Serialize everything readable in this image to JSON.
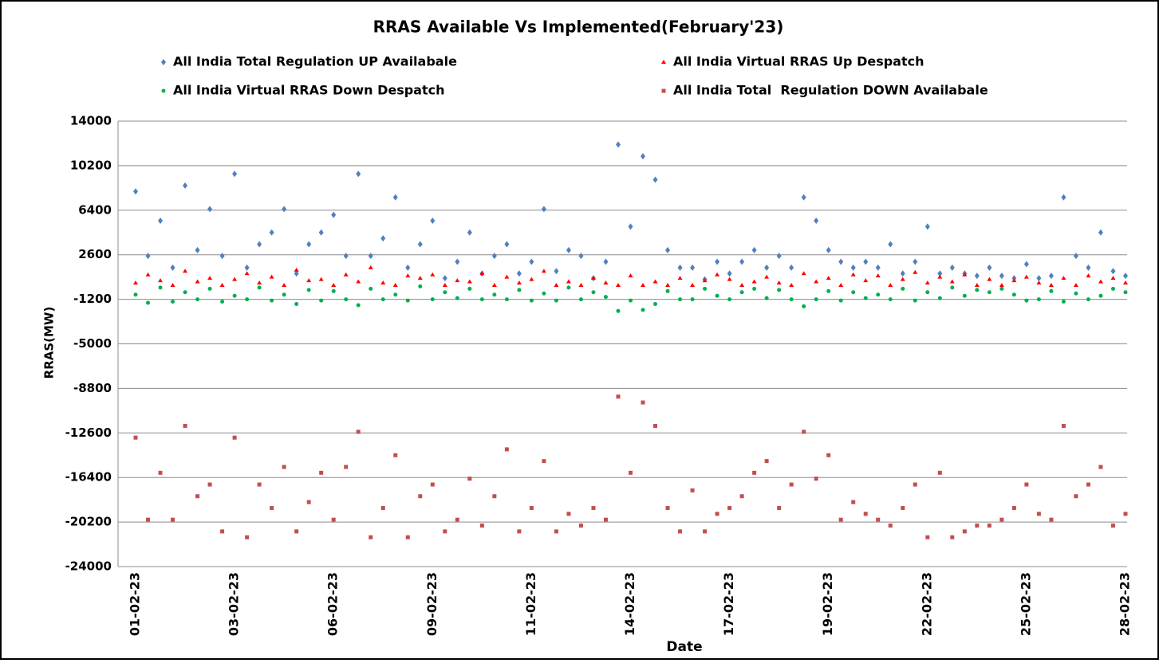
{
  "chart_data": {
    "type": "scatter",
    "title": "RRAS Available Vs Implemented(February'23)",
    "xlabel": "Date",
    "ylabel": "RRAS(MW)",
    "categories": [
      "01-02-23",
      null,
      null,
      null,
      null,
      null,
      null,
      null,
      "03-02-23",
      null,
      null,
      null,
      null,
      null,
      null,
      null,
      "06-02-23",
      null,
      null,
      null,
      null,
      null,
      null,
      null,
      "09-02-23",
      null,
      null,
      null,
      null,
      null,
      null,
      null,
      "11-02-23",
      null,
      null,
      null,
      null,
      null,
      null,
      null,
      "14-02-23",
      null,
      null,
      null,
      null,
      null,
      null,
      null,
      "17-02-23",
      null,
      null,
      null,
      null,
      null,
      null,
      null,
      "19-02-23",
      null,
      null,
      null,
      null,
      null,
      null,
      null,
      "22-02-23",
      null,
      null,
      null,
      null,
      null,
      null,
      null,
      "25-02-23",
      null,
      null,
      null,
      null,
      null,
      null,
      null,
      "28-02-23"
    ],
    "series": [
      {
        "name": "All India Total Regulation UP Availabale",
        "color": "#4f81bd",
        "marker": "diamond",
        "values": [
          8000,
          2500,
          5500,
          1500,
          8500,
          3000,
          6500,
          2500,
          9500,
          1500,
          3500,
          4500,
          6500,
          1000,
          3500,
          4500,
          6000,
          2500,
          9500,
          2500,
          4000,
          7500,
          1500,
          3500,
          5500,
          600,
          2000,
          4500,
          1000,
          2500,
          3500,
          1000,
          2000,
          6500,
          1200,
          3000,
          2500,
          600,
          2000,
          12000,
          5000,
          11000,
          9000,
          3000,
          1500,
          1500,
          500,
          2000,
          1000,
          2000,
          3000,
          1500,
          2500,
          1500,
          7500,
          5500,
          3000,
          2000,
          1500,
          2000,
          1500,
          3500,
          1000,
          2000,
          5000,
          1000,
          1500,
          1000,
          800,
          1500,
          800,
          600,
          1800,
          600,
          800,
          7500,
          2500,
          1500,
          4500,
          1200,
          800
        ]
      },
      {
        "name": "All India Virtual RRAS Up Despatch",
        "color": "#ff0000",
        "marker": "triangle",
        "values": [
          200,
          900,
          400,
          0,
          1200,
          300,
          600,
          0,
          500,
          1000,
          200,
          700,
          0,
          1300,
          400,
          500,
          0,
          900,
          300,
          1500,
          200,
          0,
          800,
          600,
          900,
          0,
          400,
          300,
          1000,
          0,
          700,
          200,
          500,
          1200,
          0,
          300,
          0,
          600,
          200,
          0,
          800,
          0,
          300,
          0,
          600,
          0,
          400,
          900,
          500,
          0,
          300,
          700,
          200,
          0,
          1000,
          300,
          600,
          0,
          900,
          400,
          800,
          0,
          500,
          1100,
          200,
          700,
          300,
          900,
          0,
          500,
          0,
          400,
          700,
          200,
          0,
          600,
          0,
          800,
          300,
          600,
          200
        ]
      },
      {
        "name": "All India Virtual RRAS Down Despatch",
        "color": "#00b050",
        "marker": "circle",
        "values": [
          -800,
          -1500,
          -200,
          -1400,
          -600,
          -1200,
          -300,
          -1400,
          -900,
          -1200,
          -200,
          -1300,
          -800,
          -1600,
          -400,
          -1300,
          -500,
          -1200,
          -1700,
          -300,
          -1200,
          -800,
          -1300,
          -100,
          -1200,
          -600,
          -1100,
          -300,
          -1200,
          -800,
          -1200,
          -400,
          -1300,
          -700,
          -1300,
          -200,
          -1200,
          -600,
          -1000,
          -2200,
          -1300,
          -2100,
          -1600,
          -500,
          -1200,
          -1200,
          -300,
          -900,
          -1200,
          -600,
          -300,
          -1100,
          -400,
          -1200,
          -1800,
          -1200,
          -500,
          -1300,
          -600,
          -1100,
          -800,
          -1200,
          -300,
          -1300,
          -600,
          -1100,
          -200,
          -900,
          -400,
          -600,
          -300,
          -800,
          -1300,
          -1200,
          -500,
          -1400,
          -700,
          -1200,
          -900,
          -300,
          -600
        ]
      },
      {
        "name": "All India Total  Regulation DOWN Availabale",
        "color": "#c0504d",
        "marker": "square",
        "values": [
          -13000,
          -20000,
          -16000,
          -20000,
          -12000,
          -18000,
          -17000,
          -21000,
          -13000,
          -21500,
          -17000,
          -19000,
          -15500,
          -21000,
          -18500,
          -16000,
          -20000,
          -15500,
          -12500,
          -21500,
          -19000,
          -14500,
          -21500,
          -18000,
          -17000,
          -21000,
          -20000,
          -16500,
          -20500,
          -18000,
          -14000,
          -21000,
          -19000,
          -15000,
          -21000,
          -19500,
          -20500,
          -19000,
          -20000,
          -9500,
          -16000,
          -10000,
          -12000,
          -19000,
          -21000,
          -17500,
          -21000,
          -19500,
          -19000,
          -18000,
          -16000,
          -15000,
          -19000,
          -17000,
          -12500,
          -16500,
          -14500,
          -20000,
          -18500,
          -19500,
          -20000,
          -20500,
          -19000,
          -17000,
          -21500,
          -16000,
          -21500,
          -21000,
          -20500,
          -20500,
          -20000,
          -19000,
          -17000,
          -19500,
          -20000,
          -12000,
          -18000,
          -17000,
          -15500,
          -20500,
          -19500
        ]
      }
    ],
    "ylim": [
      -24000,
      14000
    ],
    "yticks": [
      -24000,
      -20200,
      -16400,
      -12600,
      -8800,
      -5000,
      -1200,
      2600,
      6400,
      10200,
      14000
    ],
    "grid": true
  }
}
